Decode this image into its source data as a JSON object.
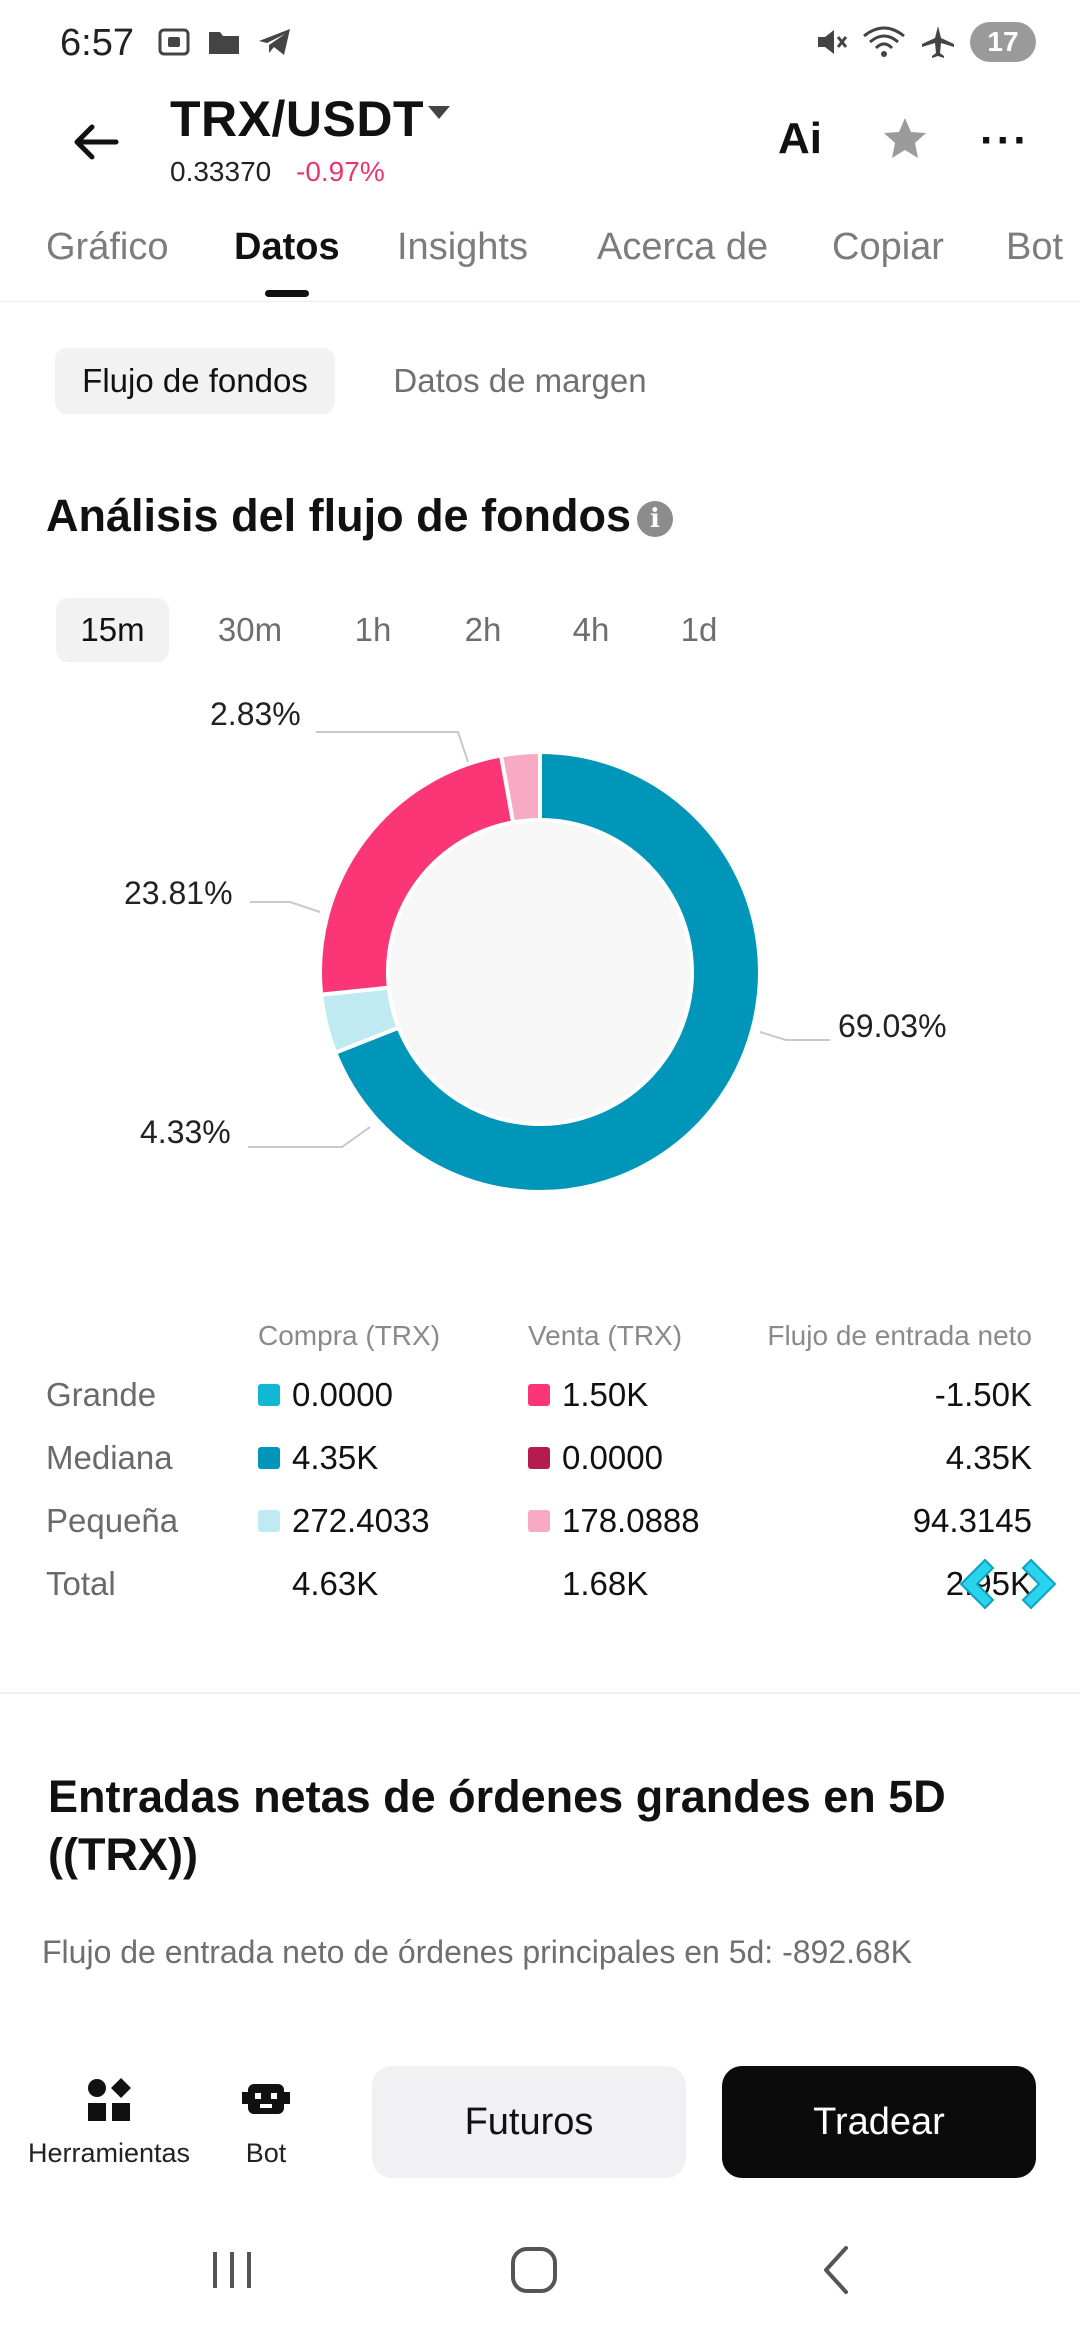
{
  "status_bar": {
    "time": "6:57",
    "battery": "17",
    "icons": [
      "screenshot-icon",
      "folder-icon",
      "telegram-icon",
      "mute-icon",
      "wifi-icon",
      "airplane-icon"
    ]
  },
  "header": {
    "pair": "TRX/USDT",
    "price": "0.33370",
    "change": "-0.97%",
    "ai_label": "Ai",
    "more_label": "···"
  },
  "tabs": [
    "Gráfico",
    "Datos",
    "Insights",
    "Acerca de",
    "Copiar",
    "Bot"
  ],
  "active_tab": "Datos",
  "subtabs": {
    "fund_flow": "Flujo de fondos",
    "margin_data": "Datos de margen"
  },
  "section_title": "Análisis del flujo de fondos",
  "info_glyph": "i",
  "intervals": [
    "15m",
    "30m",
    "1h",
    "2h",
    "4h",
    "1d"
  ],
  "active_interval": "15m",
  "chart_data": {
    "type": "pie",
    "style": "donut",
    "labels": [
      "69.03%",
      "4.33%",
      "23.81%",
      "2.83%"
    ],
    "series": [
      {
        "value": 69.03,
        "color": "#0096b9"
      },
      {
        "value": 4.33,
        "color": "#bfeaf2"
      },
      {
        "value": 23.81,
        "color": "#fb3677"
      },
      {
        "value": 2.83,
        "color": "#f8a9c3"
      }
    ]
  },
  "flow_table": {
    "headers": {
      "buy": "Compra (TRX)",
      "sell": "Venta (TRX)",
      "net": "Flujo de entrada neto"
    },
    "rows": [
      {
        "label": "Grande",
        "buy": "0.0000",
        "buy_color": "#12b7d4",
        "sell": "1.50K",
        "sell_color": "#fb3677",
        "net": "-1.50K"
      },
      {
        "label": "Mediana",
        "buy": "4.35K",
        "buy_color": "#0096b9",
        "sell": "0.0000",
        "sell_color": "#b41c4f",
        "net": "4.35K"
      },
      {
        "label": "Pequeña",
        "buy": "272.4033",
        "buy_color": "#bfeaf2",
        "sell": "178.0888",
        "sell_color": "#f8a9c3",
        "net": "94.3145"
      },
      {
        "label": "Total",
        "buy": "4.63K",
        "sell": "1.68K",
        "net": "2.95K"
      }
    ]
  },
  "large_orders": {
    "title": "Entradas netas de órdenes grandes en 5D ((TRX))",
    "subtitle": "Flujo de entrada neto de órdenes principales en 5d: -892.68K"
  },
  "bottom_bar": {
    "tools_label": "Herramientas",
    "bot_label": "Bot",
    "futuros_label": "Futuros",
    "tradear_label": "Tradear"
  },
  "colors": {
    "accent_down": "#e8366f",
    "teal": "#0096b9",
    "pink": "#fb3677"
  }
}
